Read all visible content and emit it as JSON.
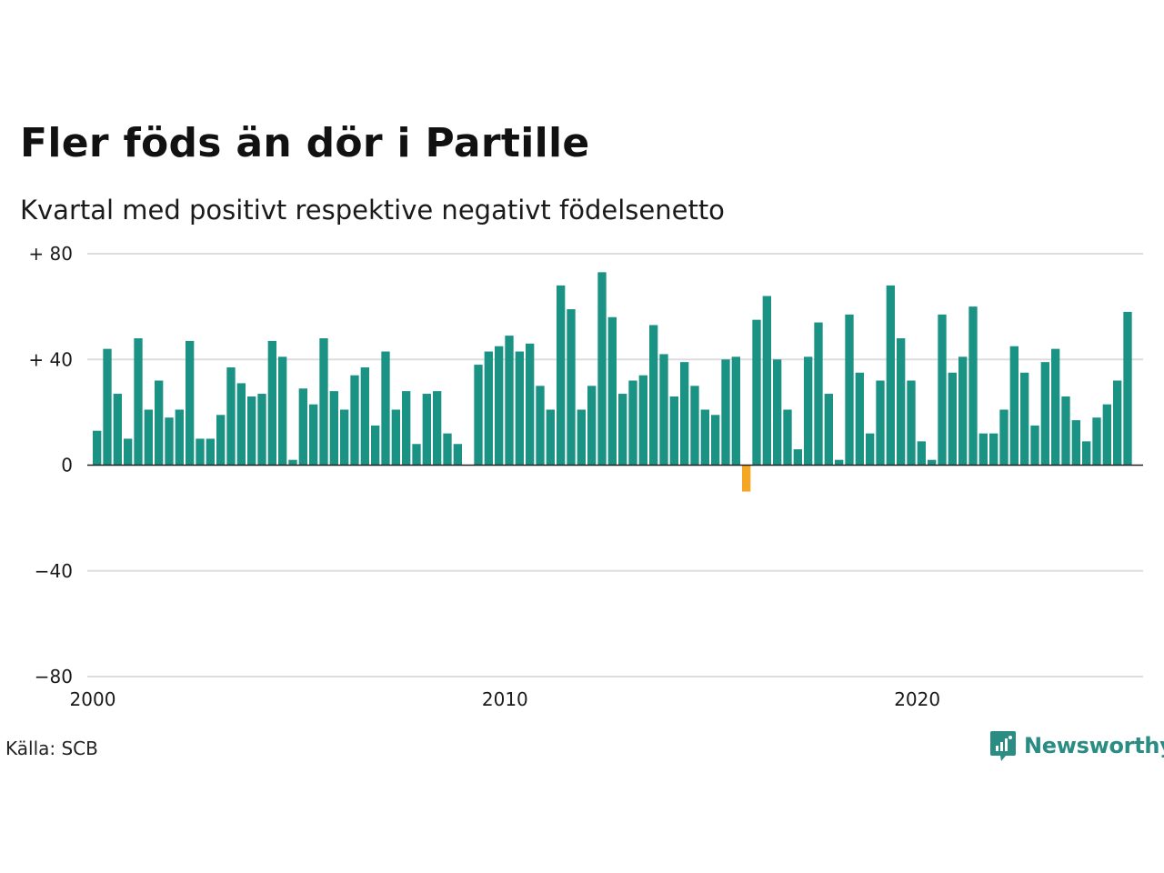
{
  "title": "Fler föds än dör i Partille",
  "subtitle": "Kvartal med positivt respektive negativt födelsenetto",
  "source": "Källa: SCB",
  "brand": {
    "name": "Newsworthy",
    "icon": "newsworthy-logo-icon",
    "color": "#2a8c82"
  },
  "colors": {
    "positive": "#1a9385",
    "negative": "#f5a623",
    "grid": "#dddddd",
    "zero": "#222222"
  },
  "chart_data": {
    "type": "bar",
    "x_start": 2000,
    "x_step": 0.25,
    "ylim": [
      -80,
      80
    ],
    "xlim": [
      2000,
      2025.5
    ],
    "y_ticks": [
      80,
      40,
      0,
      -40,
      -80
    ],
    "y_tick_labels": [
      "+ 80",
      "+ 40",
      "0",
      "−40",
      "−80"
    ],
    "x_ticks": [
      2000,
      2010,
      2020
    ],
    "x_tick_labels": [
      "2000",
      "2010",
      "2020"
    ],
    "grid": true,
    "values": [
      13,
      44,
      27,
      10,
      48,
      21,
      32,
      18,
      21,
      47,
      10,
      10,
      19,
      37,
      31,
      26,
      27,
      47,
      41,
      2,
      29,
      23,
      48,
      28,
      21,
      34,
      37,
      15,
      43,
      21,
      28,
      8,
      27,
      28,
      12,
      8,
      0,
      38,
      43,
      45,
      49,
      43,
      46,
      30,
      21,
      68,
      59,
      21,
      30,
      73,
      56,
      27,
      32,
      34,
      53,
      42,
      26,
      39,
      30,
      21,
      19,
      40,
      41,
      -10,
      55,
      64,
      40,
      21,
      6,
      41,
      54,
      27,
      2,
      57,
      35,
      12,
      32,
      68,
      48,
      32,
      9,
      2,
      57,
      35,
      41,
      60,
      12,
      12,
      21,
      45,
      35,
      15,
      39,
      44,
      26,
      17,
      9,
      18,
      23,
      32,
      58
    ]
  }
}
